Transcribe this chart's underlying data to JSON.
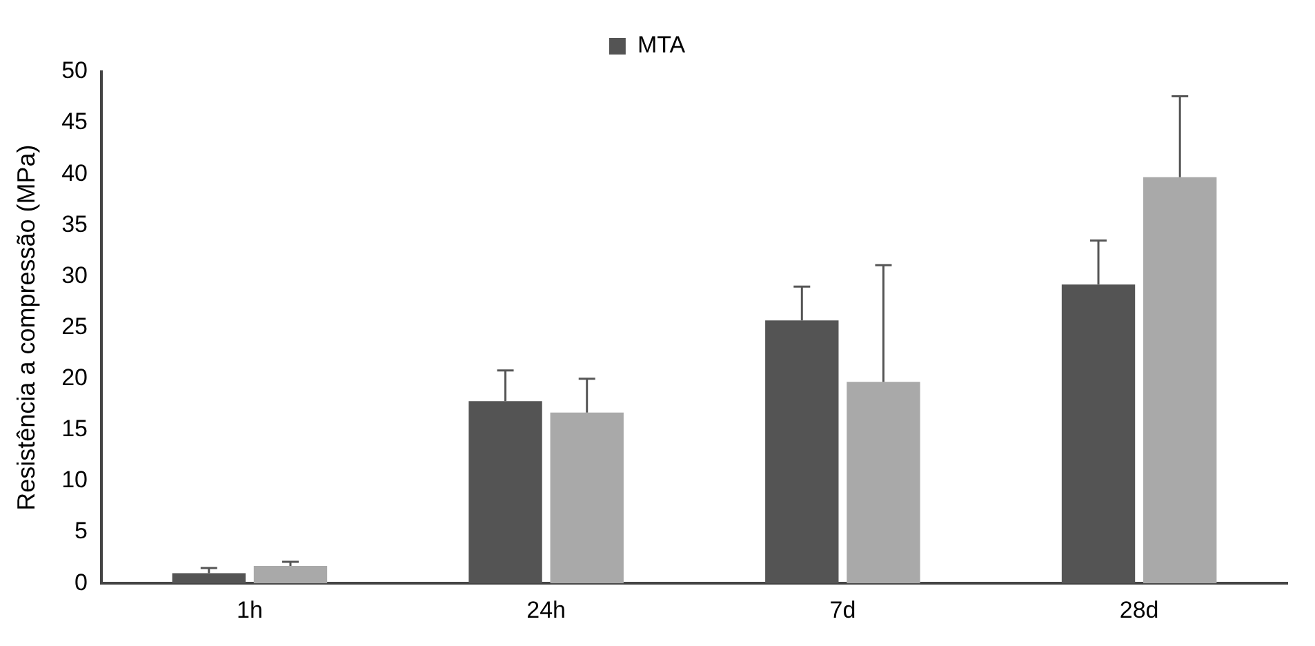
{
  "chart_data": {
    "type": "bar",
    "ylabel": "Resistência a compressão (MPa)",
    "categories": [
      "1h",
      "24h",
      "7d",
      "28d"
    ],
    "series": [
      {
        "name": "MTA",
        "color": "#545454",
        "values": [
          1.0,
          17.8,
          25.7,
          29.2
        ],
        "errors": [
          [
            1.0,
            1.5
          ],
          [
            17.8,
            20.8
          ],
          [
            25.7,
            29.0
          ],
          [
            29.2,
            33.5
          ]
        ]
      },
      {
        "color": "#a9a9a9",
        "values": [
          1.7,
          16.7,
          19.7,
          39.7
        ],
        "errors": [
          [
            1.7,
            2.1
          ],
          [
            16.7,
            20.0
          ],
          [
            19.7,
            31.1
          ],
          [
            39.7,
            47.6
          ]
        ]
      }
    ],
    "ylim": [
      0,
      50
    ],
    "yticks": [
      0,
      5,
      10,
      15,
      20,
      25,
      30,
      35,
      40,
      45,
      50
    ],
    "grid": false,
    "legend": "top"
  }
}
